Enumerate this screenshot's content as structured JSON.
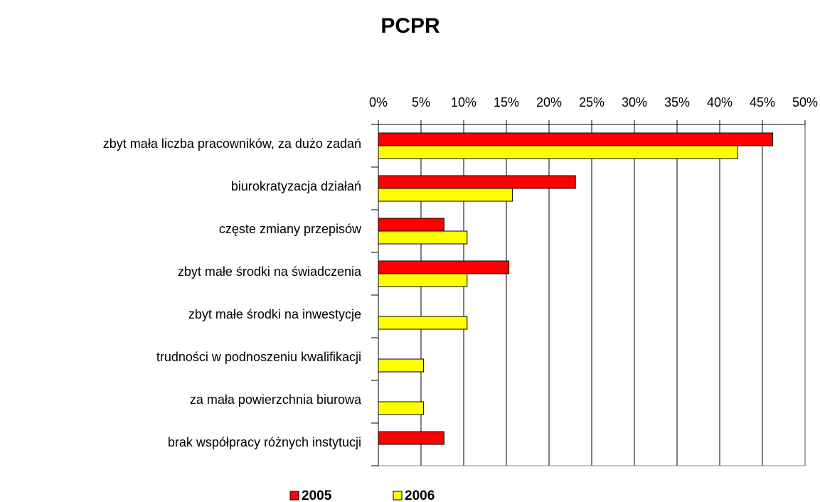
{
  "chart_data": {
    "type": "hbar",
    "title": "PCPR",
    "categories": [
      "zbyt mała liczba pracowników, za dużo zadań",
      "biurokratyzacja działań",
      "częste zmiany przepisów",
      "zbyt małe środki na świadczenia",
      "zbyt małe środki na inwestycje",
      "trudności w podnoszeniu kwalifikacji",
      "za mała powierzchnia biurowa",
      "brak współpracy różnych instytucji"
    ],
    "series": [
      {
        "name": "2005",
        "color": "#ff0000",
        "values": [
          46.2,
          23.1,
          7.7,
          15.3,
          0,
          0,
          0,
          7.7
        ]
      },
      {
        "name": "2006",
        "color": "#ffff00",
        "values": [
          42.1,
          15.7,
          10.4,
          10.4,
          10.4,
          5.3,
          5.3,
          0
        ]
      }
    ],
    "xlim": [
      0,
      50
    ],
    "xticks": [
      {
        "value": 0,
        "label": "0%"
      },
      {
        "value": 5,
        "label": "5%"
      },
      {
        "value": 10,
        "label": "10%"
      },
      {
        "value": 15,
        "label": "15%"
      },
      {
        "value": 20,
        "label": "20%"
      },
      {
        "value": 25,
        "label": "25%"
      },
      {
        "value": 30,
        "label": "30%"
      },
      {
        "value": 35,
        "label": "35%"
      },
      {
        "value": 40,
        "label": "40%"
      },
      {
        "value": 45,
        "label": "45%"
      },
      {
        "value": 50,
        "label": "50%"
      }
    ],
    "grid": true,
    "legend": "bottom"
  }
}
